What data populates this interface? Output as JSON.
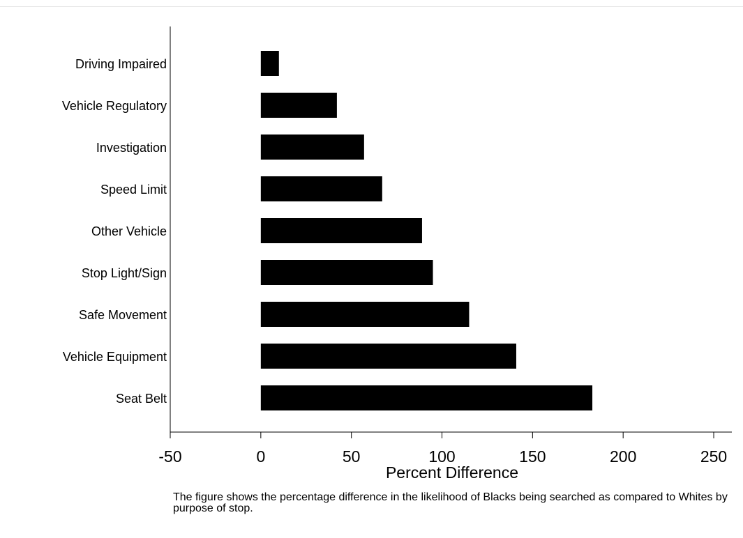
{
  "chart_data": {
    "type": "bar",
    "orientation": "horizontal",
    "categories": [
      "Driving Impaired",
      "Vehicle Regulatory",
      "Investigation",
      "Speed Limit",
      "Other Vehicle",
      "Stop Light/Sign",
      "Safe Movement",
      "Vehicle Equipment",
      "Seat Belt"
    ],
    "values": [
      10,
      42,
      57,
      67,
      89,
      95,
      115,
      141,
      183
    ],
    "title": "",
    "xlabel": "Percent Difference",
    "ylabel": "",
    "xlim": [
      -50,
      260
    ],
    "xticks": [
      -50,
      0,
      50,
      100,
      150,
      200,
      250
    ],
    "grid": false,
    "bar_color": "#000000"
  },
  "caption": "The figure shows the percentage difference in the likelihood of Blacks being searched as compared to Whites by purpose of stop."
}
